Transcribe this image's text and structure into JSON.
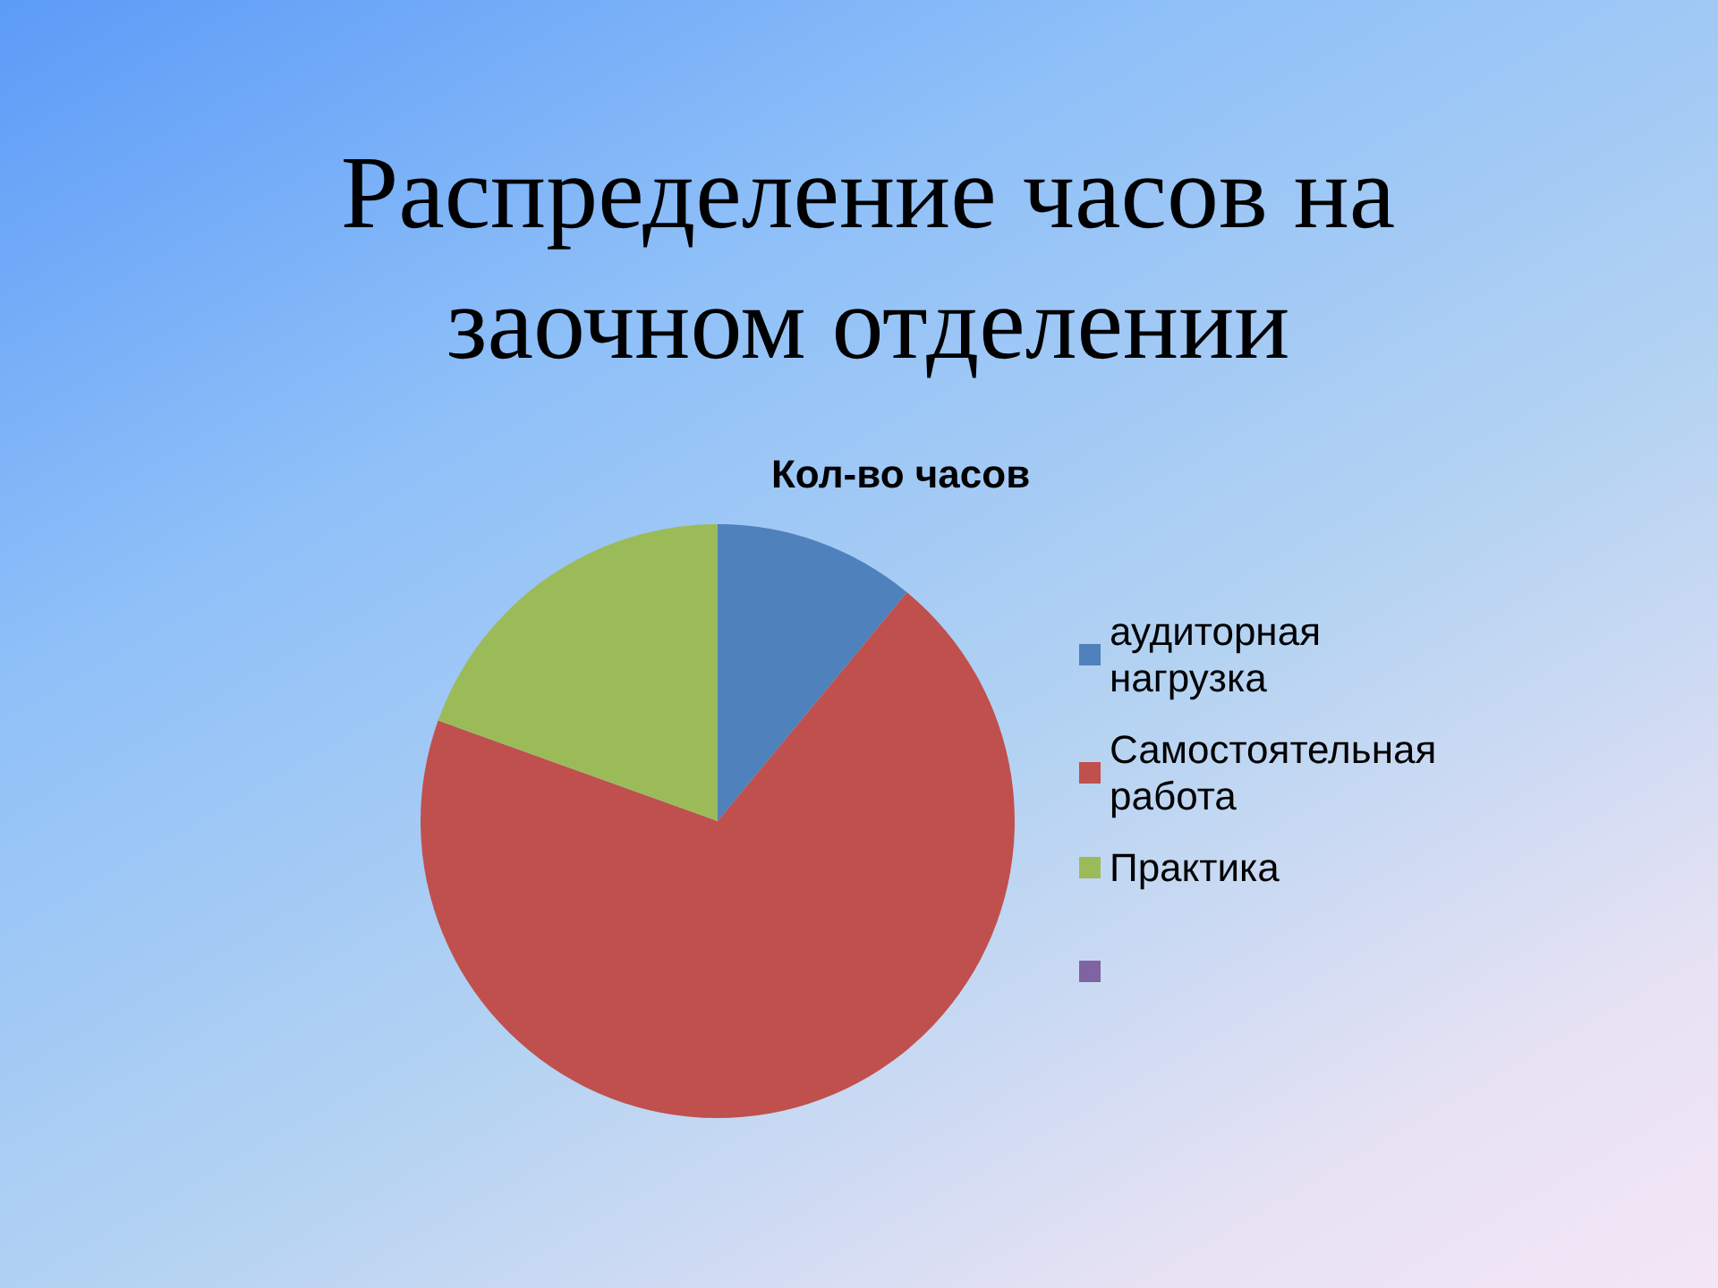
{
  "chart_data": {
    "type": "pie",
    "title": "Распределение часов на заочном отделении",
    "subtitle": "Кол-во часов",
    "categories": [
      "аудиторная нагрузка",
      "Самостоятельная работа",
      "Практика",
      null
    ],
    "values": [
      11,
      69.5,
      19.5,
      0
    ],
    "colors": [
      "#4f81bd",
      "#c0504d",
      "#9bbb59",
      "#8064a2"
    ],
    "legend": "right"
  }
}
